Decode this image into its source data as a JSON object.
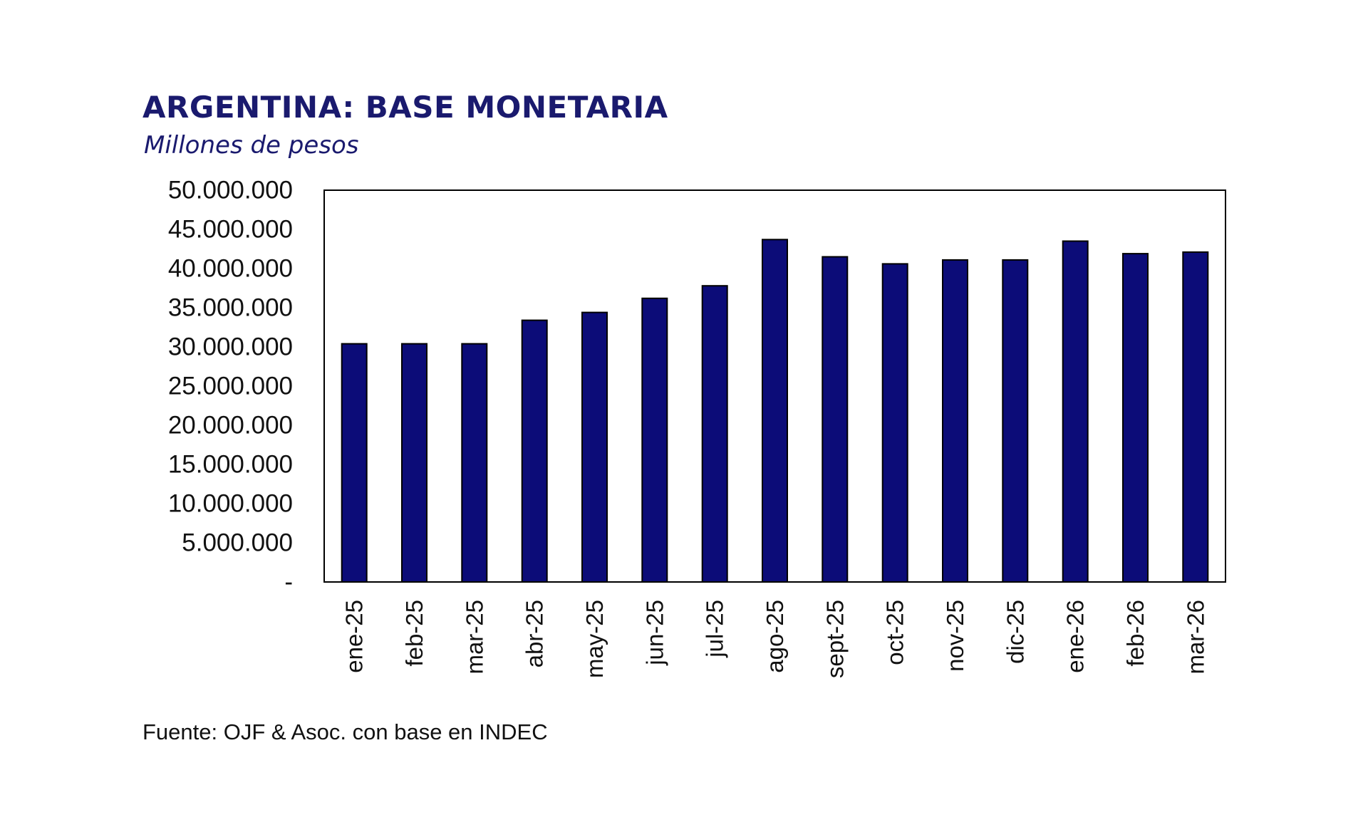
{
  "title": "ARGENTINA: BASE MONETARIA",
  "subtitle": "Millones de pesos",
  "source": "Fuente: OJF & Asoc. con base en INDEC",
  "colors": {
    "bar_fill": "#0c0c78",
    "title": "#1a1a6e"
  },
  "chart_data": {
    "type": "bar",
    "categories": [
      "ene-25",
      "feb-25",
      "mar-25",
      "abr-25",
      "may-25",
      "jun-25",
      "jul-25",
      "ago-25",
      "sept-25",
      "oct-25",
      "nov-25",
      "dic-25",
      "ene-26",
      "feb-26",
      "mar-26"
    ],
    "values": [
      30400000,
      30400000,
      30400000,
      33400000,
      34400000,
      36200000,
      37800000,
      43700000,
      41500000,
      40600000,
      41100000,
      41100000,
      43500000,
      41900000,
      42100000
    ],
    "ylim": [
      0,
      50000000
    ],
    "yticks": [
      0,
      5000000,
      10000000,
      15000000,
      20000000,
      25000000,
      30000000,
      35000000,
      40000000,
      45000000,
      50000000
    ],
    "ytick_labels": [
      "-",
      "5.000.000",
      "10.000.000",
      "15.000.000",
      "20.000.000",
      "25.000.000",
      "30.000.000",
      "35.000.000",
      "40.000.000",
      "45.000.000",
      "50.000.000"
    ],
    "xlabel": "",
    "ylabel": "",
    "grid": false,
    "legend": "none"
  }
}
